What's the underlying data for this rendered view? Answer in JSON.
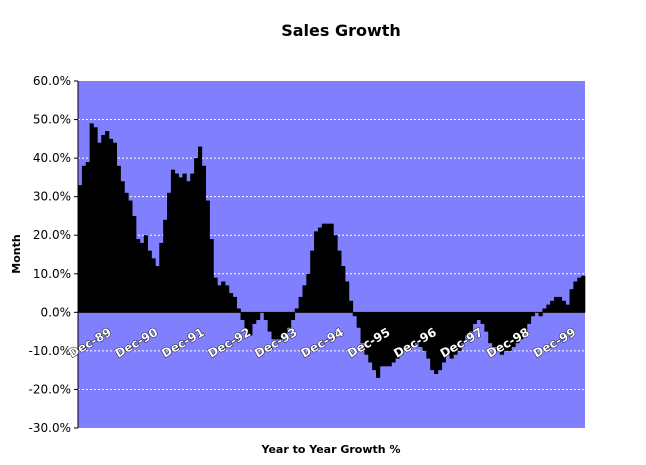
{
  "chart_data": {
    "type": "bar",
    "title": "Sales Growth",
    "xlabel": "Year to Year Growth %",
    "ylabel": "Month",
    "ylim": [
      -0.3,
      0.6
    ],
    "yticks": [
      -0.3,
      -0.2,
      -0.1,
      0.0,
      0.1,
      0.2,
      0.3,
      0.4,
      0.5,
      0.6
    ],
    "ytick_labels": [
      "-30.0%",
      "-20.0%",
      "-10.0%",
      "0.0%",
      "10.0%",
      "20.0%",
      "30.0%",
      "40.0%",
      "50.0%",
      "60.0%"
    ],
    "grid": true,
    "colors": {
      "plot_background": "#8080ff",
      "bars": "#000000",
      "gridlines": "#ffffff"
    },
    "x_tick_labels": [
      "Dec-89",
      "Dec-90",
      "Dec-91",
      "Dec-92",
      "Dec-93",
      "Dec-94",
      "Dec-95",
      "Dec-96",
      "Dec-97",
      "Dec-98",
      "Dec-99"
    ],
    "x_tick_every": 12,
    "values": [
      0.33,
      0.38,
      0.39,
      0.49,
      0.48,
      0.44,
      0.46,
      0.47,
      0.45,
      0.44,
      0.38,
      0.34,
      0.31,
      0.29,
      0.25,
      0.19,
      0.18,
      0.2,
      0.16,
      0.14,
      0.12,
      0.18,
      0.24,
      0.31,
      0.37,
      0.36,
      0.35,
      0.36,
      0.34,
      0.36,
      0.4,
      0.43,
      0.38,
      0.29,
      0.19,
      0.09,
      0.07,
      0.08,
      0.07,
      0.05,
      0.04,
      0.01,
      -0.02,
      -0.05,
      -0.06,
      -0.03,
      -0.02,
      0.0,
      -0.02,
      -0.05,
      -0.07,
      -0.07,
      -0.07,
      -0.06,
      -0.04,
      -0.02,
      0.01,
      0.04,
      0.07,
      0.1,
      0.16,
      0.21,
      0.22,
      0.23,
      0.23,
      0.23,
      0.2,
      0.16,
      0.12,
      0.08,
      0.03,
      -0.01,
      -0.04,
      -0.08,
      -0.11,
      -0.13,
      -0.15,
      -0.17,
      -0.14,
      -0.14,
      -0.14,
      -0.13,
      -0.12,
      -0.11,
      -0.1,
      -0.09,
      -0.09,
      -0.08,
      -0.09,
      -0.1,
      -0.12,
      -0.15,
      -0.16,
      -0.15,
      -0.13,
      -0.11,
      -0.12,
      -0.11,
      -0.1,
      -0.08,
      -0.06,
      -0.05,
      -0.03,
      -0.02,
      -0.03,
      -0.05,
      -0.08,
      -0.09,
      -0.1,
      -0.11,
      -0.1,
      -0.1,
      -0.09,
      -0.08,
      -0.07,
      -0.05,
      -0.03,
      -0.01,
      0.0,
      -0.01,
      0.01,
      0.02,
      0.03,
      0.04,
      0.04,
      0.03,
      0.02,
      0.06,
      0.08,
      0.09,
      0.095
    ]
  }
}
